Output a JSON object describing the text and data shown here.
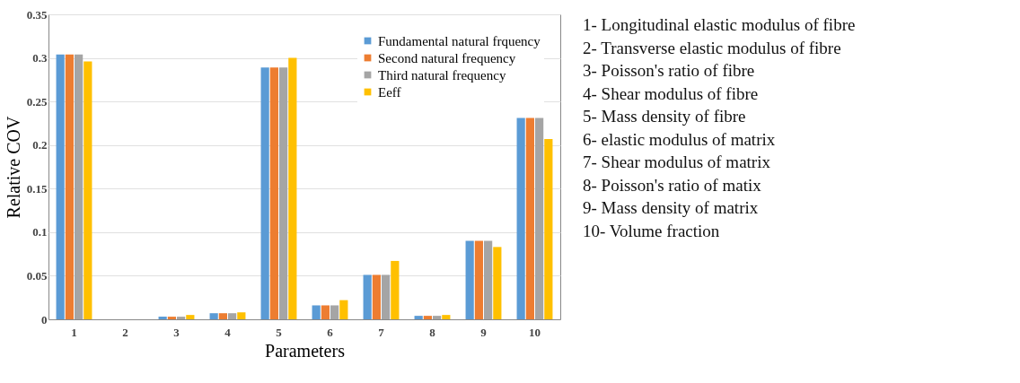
{
  "chart_data": {
    "type": "bar",
    "xlabel": "Parameters",
    "ylabel": "Relative COV",
    "categories": [
      "1",
      "2",
      "3",
      "4",
      "5",
      "6",
      "7",
      "8",
      "9",
      "10"
    ],
    "series": [
      {
        "name": "Fundamental natural frquency",
        "color": "#5b9bd5",
        "values": [
          0.304,
          0,
          0.003,
          0.007,
          0.289,
          0.016,
          0.051,
          0.004,
          0.09,
          0.231
        ]
      },
      {
        "name": "Second natural frequency",
        "color": "#ed7d31",
        "values": [
          0.304,
          0,
          0.003,
          0.007,
          0.289,
          0.016,
          0.051,
          0.004,
          0.09,
          0.231
        ]
      },
      {
        "name": "Third natural frequency",
        "color": "#a5a5a5",
        "values": [
          0.304,
          0,
          0.003,
          0.007,
          0.289,
          0.016,
          0.051,
          0.004,
          0.09,
          0.231
        ]
      },
      {
        "name": "Eeff",
        "color": "#ffc000",
        "values": [
          0.296,
          0,
          0.005,
          0.008,
          0.3,
          0.022,
          0.067,
          0.005,
          0.083,
          0.207
        ]
      }
    ],
    "ylim": [
      0,
      0.35
    ],
    "yticks": [
      0,
      0.05,
      0.1,
      0.15,
      0.2,
      0.25,
      0.3,
      0.35
    ],
    "grid": "y",
    "legend": "top right",
    "annotations": [
      "1- Longitudinal elastic modulus of fibre",
      "2- Transverse elastic modulus of fibre",
      "3- Poisson's ratio of fibre",
      "4- Shear modulus of fibre",
      "5- Mass density of fibre",
      "6- elastic modulus of matrix",
      "7- Shear modulus of matrix",
      "8- Poisson's ratio of matix",
      "9- Mass density of matrix",
      "10- Volume fraction"
    ]
  }
}
